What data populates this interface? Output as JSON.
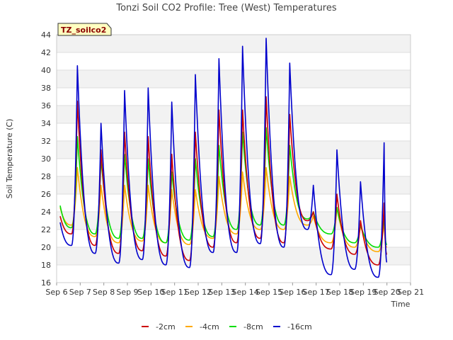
{
  "chart_data": {
    "type": "line",
    "title": "Tonzi Soil CO2 Profile: Tree (West) Temperatures",
    "xlabel": "Time",
    "ylabel": "Soil Temperature (C)",
    "annotation": "TZ_soilco2",
    "xlim": [
      6,
      21
    ],
    "ylim": [
      16,
      44
    ],
    "x_ticks": [
      6,
      7,
      8,
      9,
      10,
      11,
      12,
      13,
      14,
      15,
      16,
      17,
      18,
      19,
      20,
      21
    ],
    "x_tick_labels": [
      "Sep 6",
      "Sep 7",
      "Sep 8",
      "Sep 9",
      "Sep 10",
      "Sep 11",
      "Sep 12",
      "Sep 13",
      "Sep 14",
      "Sep 15",
      "Sep 16",
      "Sep 17",
      "Sep 18",
      "Sep 19",
      "Sep 20",
      "Sep 21"
    ],
    "y_ticks": [
      16,
      18,
      20,
      22,
      24,
      26,
      28,
      30,
      32,
      34,
      36,
      38,
      40,
      42,
      44
    ],
    "grid": true,
    "legend_position": "bottom",
    "series": [
      {
        "name": "-2cm",
        "color": "#cc0000",
        "daily_max": [
          36.5,
          31.0,
          33.0,
          32.5,
          30.5,
          33.0,
          35.5,
          35.5,
          37.0,
          35.0,
          24.0,
          26.0,
          23.0,
          25.0
        ],
        "daily_min": [
          21.5,
          20.2,
          19.3,
          19.6,
          19.0,
          18.5,
          20.0,
          20.5,
          21.0,
          20.5,
          23.0,
          19.8,
          19.2,
          18.0
        ],
        "start_value": 23.5,
        "end_value": 19.2
      },
      {
        "name": "-4cm",
        "color": "#ffaa00",
        "daily_max": [
          29.0,
          27.0,
          27.0,
          27.0,
          26.5,
          26.5,
          28.0,
          28.5,
          29.0,
          28.0,
          23.5,
          24.5,
          22.5,
          23.0
        ],
        "daily_min": [
          22.5,
          21.2,
          20.5,
          20.7,
          20.5,
          20.3,
          21.0,
          21.5,
          22.0,
          22.0,
          22.5,
          20.5,
          20.0,
          19.5
        ],
        "start_value": 24.5,
        "end_value": 20.0
      },
      {
        "name": "-8cm",
        "color": "#00dd00",
        "daily_max": [
          32.5,
          30.0,
          30.5,
          30.0,
          28.5,
          30.0,
          31.5,
          33.0,
          33.5,
          31.5,
          24.0,
          24.5,
          22.5,
          23.5
        ],
        "daily_min": [
          22.2,
          21.5,
          21.0,
          21.0,
          20.5,
          20.8,
          21.2,
          22.0,
          22.5,
          22.5,
          23.2,
          21.5,
          20.5,
          20.0
        ],
        "start_value": 24.7,
        "end_value": 20.3
      },
      {
        "name": "-16cm",
        "color": "#0000cc",
        "daily_max": [
          40.5,
          34.0,
          37.7,
          38.0,
          36.4,
          39.5,
          41.3,
          42.7,
          43.6,
          40.8,
          27.0,
          31.0,
          27.4,
          31.8
        ],
        "daily_min": [
          20.2,
          19.3,
          18.2,
          18.6,
          18.0,
          17.7,
          19.4,
          19.4,
          20.4,
          20.0,
          22.0,
          16.9,
          17.5,
          16.6
        ],
        "start_value": 22.8,
        "end_value": 18.3
      }
    ]
  }
}
